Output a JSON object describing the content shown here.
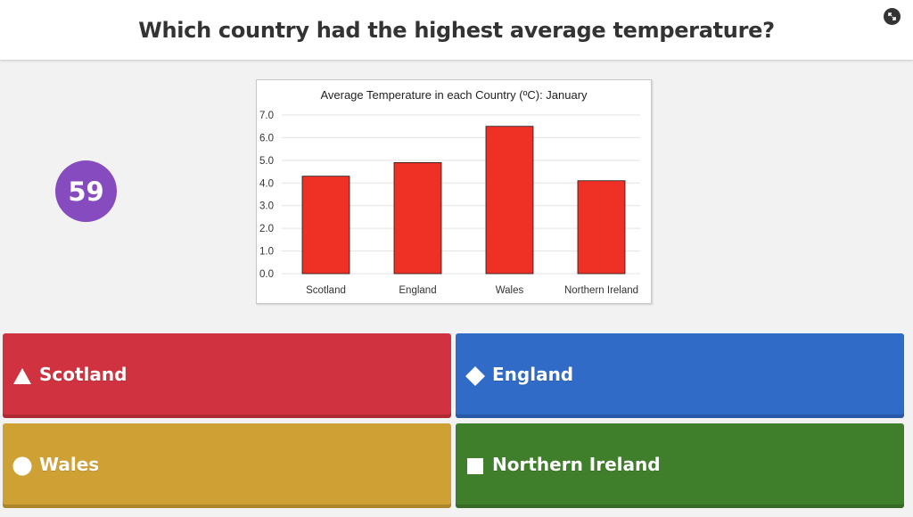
{
  "question": "Which country had the highest average temperature?",
  "timer": "59",
  "colors": {
    "timer": "#864cbf",
    "answer_red": "#d13240",
    "answer_blue": "#2f6bc7",
    "answer_yellow": "#cfa034",
    "answer_green": "#3f7f2b",
    "bar": "#ee3124"
  },
  "answers": [
    {
      "label": "Scotland",
      "shape": "triangle"
    },
    {
      "label": "England",
      "shape": "diamond"
    },
    {
      "label": "Wales",
      "shape": "circle"
    },
    {
      "label": "Northern Ireland",
      "shape": "square"
    }
  ],
  "chart_data": {
    "type": "bar",
    "title": "Average Temperature in each Country (ºC): January",
    "categories": [
      "Scotland",
      "England",
      "Wales",
      "Northern Ireland"
    ],
    "values": [
      4.3,
      4.9,
      6.5,
      4.1
    ],
    "ylim": [
      0,
      7
    ],
    "yticks": [
      "0.0",
      "1.0",
      "2.0",
      "3.0",
      "4.0",
      "5.0",
      "6.0",
      "7.0"
    ],
    "xlabel": "",
    "ylabel": "",
    "grid": true,
    "legend": "none"
  }
}
